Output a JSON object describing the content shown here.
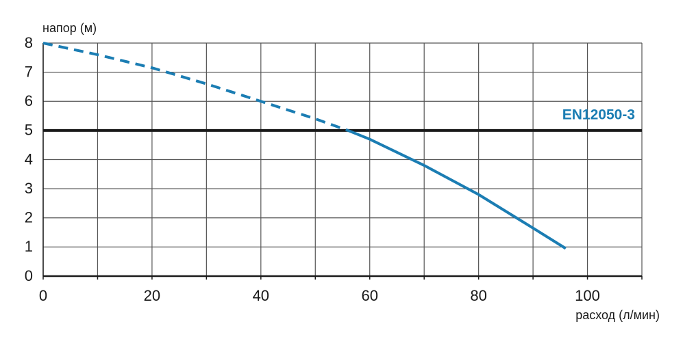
{
  "chart_data": {
    "type": "line",
    "y_label": "напор (м)",
    "x_label": "расход (л/мин)",
    "xlim": [
      0,
      110
    ],
    "xticks": [
      0,
      20,
      40,
      60,
      80,
      100
    ],
    "xgrid": [
      0,
      10,
      20,
      30,
      40,
      50,
      60,
      70,
      80,
      90,
      100,
      110
    ],
    "ylim": [
      0,
      8
    ],
    "yticks": [
      0,
      1,
      2,
      3,
      4,
      5,
      6,
      7,
      8
    ],
    "grid": true,
    "series": [
      {
        "color": "#1b7db3",
        "dashed": true,
        "x": [
          0,
          10,
          20,
          30,
          40,
          50,
          56
        ],
        "values": [
          8,
          7.6,
          7.15,
          6.6,
          6.0,
          5.4,
          5.0
        ]
      },
      {
        "color": "#1b7db3",
        "dashed": false,
        "x": [
          56,
          60,
          70,
          80,
          90,
          96
        ],
        "values": [
          5.0,
          4.7,
          3.8,
          2.8,
          1.65,
          0.95
        ]
      }
    ],
    "reference_line": {
      "value": 5,
      "label": "EN12050-3",
      "color": "#1a1a1a",
      "label_color": "#1b7db3"
    }
  }
}
